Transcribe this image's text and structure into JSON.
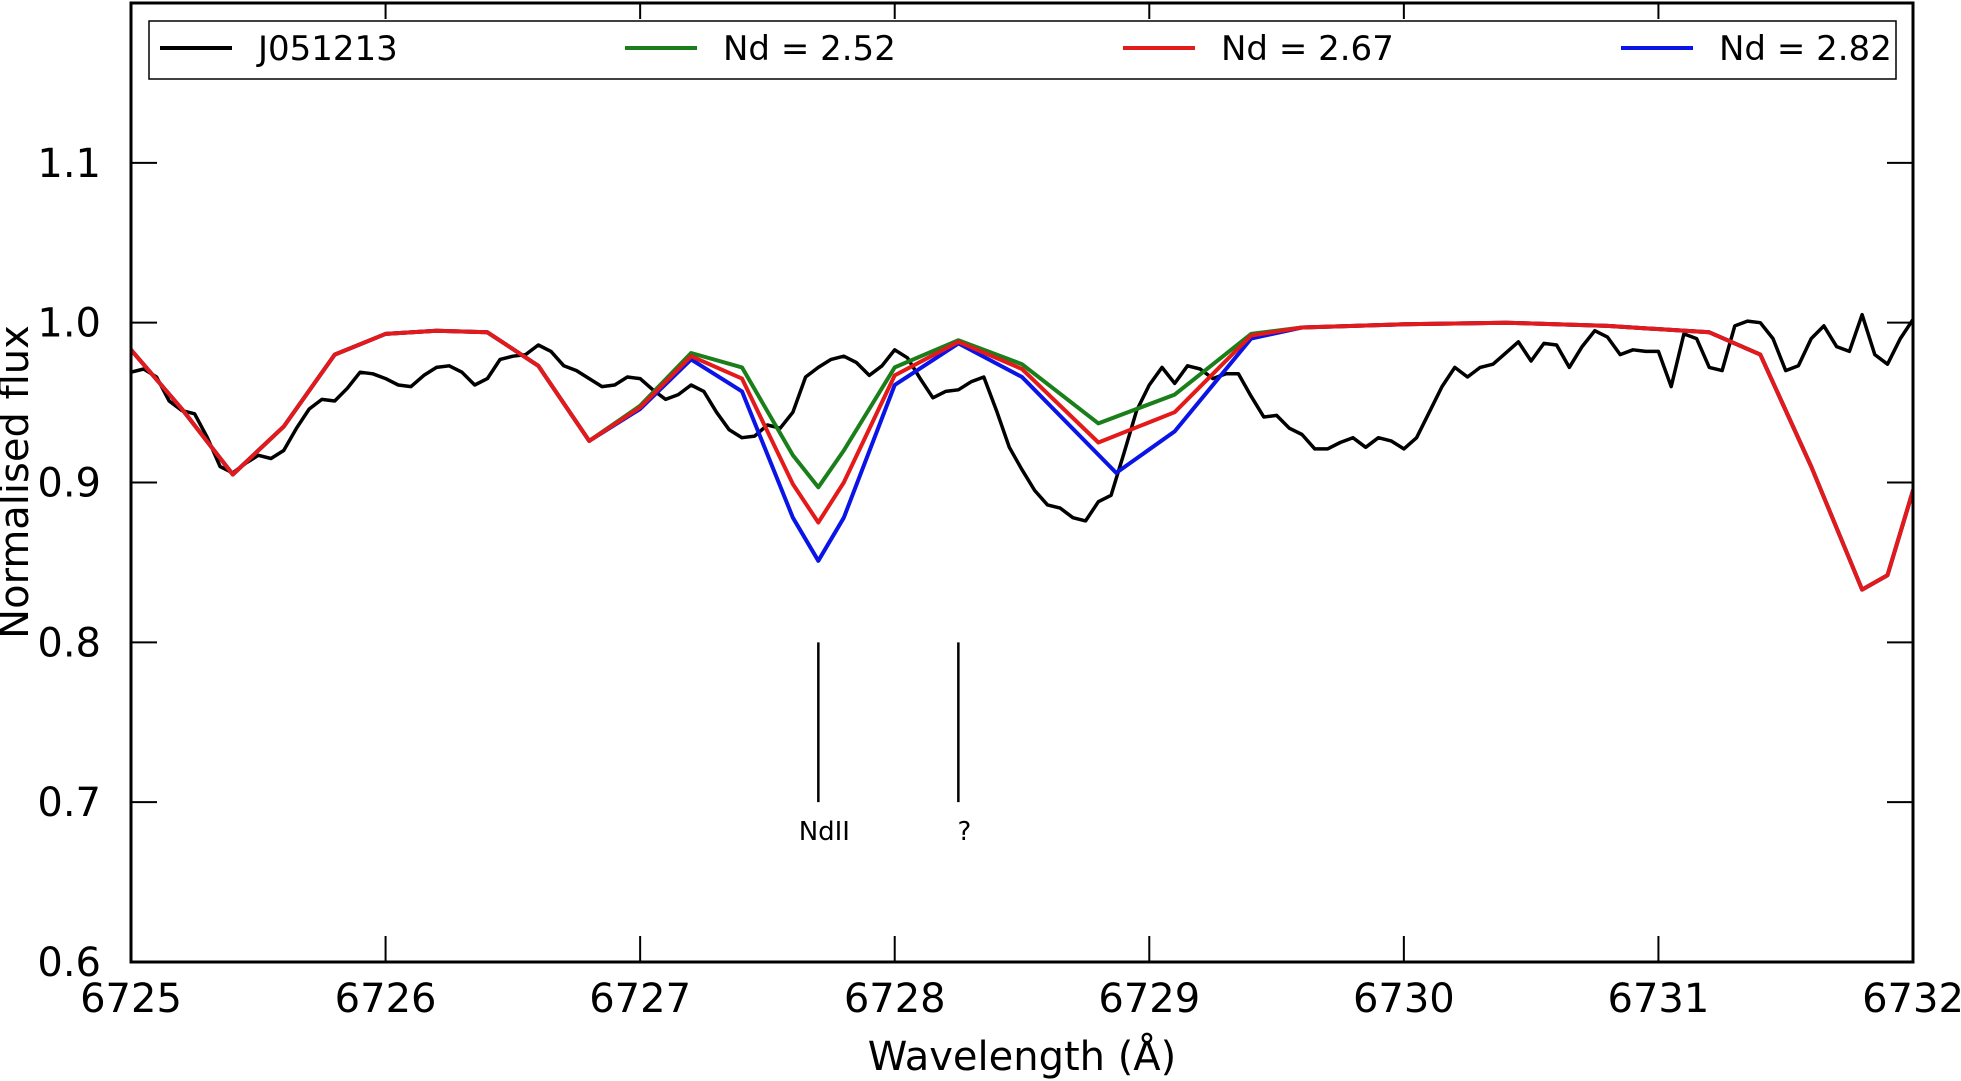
{
  "chart_data": {
    "type": "line",
    "title": "",
    "xlabel": "Wavelength (Å)",
    "ylabel": "Normalised flux",
    "xlim": [
      6725,
      6732
    ],
    "ylim": [
      0.6,
      1.2
    ],
    "xticks": [
      "6725",
      "6726",
      "6727",
      "6728",
      "6729",
      "6730",
      "6731",
      "6732"
    ],
    "yticks": [
      "0.6",
      "0.7",
      "0.8",
      "0.9",
      "1.0",
      "1.1"
    ],
    "grid": false,
    "legend": {
      "placement": "top",
      "columns": 4
    },
    "series": [
      {
        "name": "J051213",
        "color": "#000000",
        "points": [
          [
            6725.0,
            0.969
          ],
          [
            6725.05,
            0.971
          ],
          [
            6725.1,
            0.966
          ],
          [
            6725.15,
            0.951
          ],
          [
            6725.2,
            0.945
          ],
          [
            6725.25,
            0.943
          ],
          [
            6725.3,
            0.928
          ],
          [
            6725.35,
            0.91
          ],
          [
            6725.4,
            0.906
          ],
          [
            6725.45,
            0.912
          ],
          [
            6725.5,
            0.917
          ],
          [
            6725.55,
            0.915
          ],
          [
            6725.6,
            0.92
          ],
          [
            6725.65,
            0.934
          ],
          [
            6725.7,
            0.946
          ],
          [
            6725.75,
            0.952
          ],
          [
            6725.8,
            0.951
          ],
          [
            6725.85,
            0.959
          ],
          [
            6725.9,
            0.969
          ],
          [
            6725.95,
            0.968
          ],
          [
            6726.0,
            0.965
          ],
          [
            6726.05,
            0.961
          ],
          [
            6726.1,
            0.96
          ],
          [
            6726.15,
            0.967
          ],
          [
            6726.2,
            0.972
          ],
          [
            6726.25,
            0.973
          ],
          [
            6726.3,
            0.969
          ],
          [
            6726.35,
            0.961
          ],
          [
            6726.4,
            0.965
          ],
          [
            6726.45,
            0.977
          ],
          [
            6726.5,
            0.979
          ],
          [
            6726.55,
            0.98
          ],
          [
            6726.6,
            0.986
          ],
          [
            6726.65,
            0.982
          ],
          [
            6726.7,
            0.973
          ],
          [
            6726.75,
            0.97
          ],
          [
            6726.8,
            0.965
          ],
          [
            6726.85,
            0.96
          ],
          [
            6726.9,
            0.961
          ],
          [
            6726.95,
            0.966
          ],
          [
            6727.0,
            0.965
          ],
          [
            6727.05,
            0.958
          ],
          [
            6727.1,
            0.952
          ],
          [
            6727.15,
            0.955
          ],
          [
            6727.2,
            0.961
          ],
          [
            6727.25,
            0.957
          ],
          [
            6727.3,
            0.944
          ],
          [
            6727.35,
            0.933
          ],
          [
            6727.4,
            0.928
          ],
          [
            6727.45,
            0.929
          ],
          [
            6727.5,
            0.936
          ],
          [
            6727.55,
            0.934
          ],
          [
            6727.6,
            0.944
          ],
          [
            6727.65,
            0.966
          ],
          [
            6727.7,
            0.972
          ],
          [
            6727.75,
            0.977
          ],
          [
            6727.8,
            0.979
          ],
          [
            6727.85,
            0.975
          ],
          [
            6727.9,
            0.967
          ],
          [
            6727.95,
            0.973
          ],
          [
            6728.0,
            0.983
          ],
          [
            6728.05,
            0.978
          ],
          [
            6728.1,
            0.965
          ],
          [
            6728.15,
            0.953
          ],
          [
            6728.2,
            0.957
          ],
          [
            6728.25,
            0.958
          ],
          [
            6728.3,
            0.963
          ],
          [
            6728.35,
            0.966
          ],
          [
            6728.4,
            0.945
          ],
          [
            6728.45,
            0.922
          ],
          [
            6728.5,
            0.908
          ],
          [
            6728.55,
            0.895
          ],
          [
            6728.6,
            0.886
          ],
          [
            6728.65,
            0.884
          ],
          [
            6728.7,
            0.878
          ],
          [
            6728.75,
            0.876
          ],
          [
            6728.8,
            0.888
          ],
          [
            6728.85,
            0.892
          ],
          [
            6728.9,
            0.918
          ],
          [
            6728.95,
            0.945
          ],
          [
            6729.0,
            0.961
          ],
          [
            6729.05,
            0.972
          ],
          [
            6729.1,
            0.962
          ],
          [
            6729.15,
            0.973
          ],
          [
            6729.2,
            0.971
          ],
          [
            6729.25,
            0.965
          ],
          [
            6729.3,
            0.968
          ],
          [
            6729.35,
            0.968
          ],
          [
            6729.4,
            0.954
          ],
          [
            6729.45,
            0.941
          ],
          [
            6729.5,
            0.942
          ],
          [
            6729.55,
            0.934
          ],
          [
            6729.6,
            0.93
          ],
          [
            6729.65,
            0.921
          ],
          [
            6729.7,
            0.921
          ],
          [
            6729.75,
            0.925
          ],
          [
            6729.8,
            0.928
          ],
          [
            6729.85,
            0.922
          ],
          [
            6729.9,
            0.928
          ],
          [
            6729.95,
            0.926
          ],
          [
            6730.0,
            0.921
          ],
          [
            6730.05,
            0.928
          ],
          [
            6730.1,
            0.944
          ],
          [
            6730.15,
            0.96
          ],
          [
            6730.2,
            0.972
          ],
          [
            6730.25,
            0.966
          ],
          [
            6730.3,
            0.972
          ],
          [
            6730.35,
            0.974
          ],
          [
            6730.4,
            0.981
          ],
          [
            6730.45,
            0.988
          ],
          [
            6730.5,
            0.976
          ],
          [
            6730.55,
            0.987
          ],
          [
            6730.6,
            0.986
          ],
          [
            6730.65,
            0.972
          ],
          [
            6730.7,
            0.985
          ],
          [
            6730.75,
            0.995
          ],
          [
            6730.8,
            0.991
          ],
          [
            6730.85,
            0.98
          ],
          [
            6730.9,
            0.983
          ],
          [
            6730.95,
            0.982
          ],
          [
            6731.0,
            0.982
          ],
          [
            6731.05,
            0.96
          ],
          [
            6731.1,
            0.993
          ],
          [
            6731.15,
            0.99
          ],
          [
            6731.2,
            0.972
          ],
          [
            6731.25,
            0.97
          ],
          [
            6731.3,
            0.998
          ],
          [
            6731.35,
            1.001
          ],
          [
            6731.4,
            1.0
          ],
          [
            6731.45,
            0.99
          ],
          [
            6731.5,
            0.97
          ],
          [
            6731.55,
            0.973
          ],
          [
            6731.6,
            0.99
          ],
          [
            6731.65,
            0.998
          ],
          [
            6731.7,
            0.985
          ],
          [
            6731.75,
            0.982
          ],
          [
            6731.8,
            1.005
          ],
          [
            6731.85,
            0.98
          ],
          [
            6731.9,
            0.974
          ],
          [
            6731.95,
            0.99
          ],
          [
            6732.0,
            1.002
          ]
        ]
      },
      {
        "name": "Nd = 2.52",
        "color": "#1a7f1a",
        "points": [
          [
            6725.0,
            0.983
          ],
          [
            6725.2,
            0.946
          ],
          [
            6725.4,
            0.905
          ],
          [
            6725.6,
            0.935
          ],
          [
            6725.8,
            0.98
          ],
          [
            6726.0,
            0.993
          ],
          [
            6726.2,
            0.995
          ],
          [
            6726.4,
            0.994
          ],
          [
            6726.6,
            0.973
          ],
          [
            6726.8,
            0.926
          ],
          [
            6727.0,
            0.948
          ],
          [
            6727.2,
            0.981
          ],
          [
            6727.4,
            0.972
          ],
          [
            6727.6,
            0.917
          ],
          [
            6727.7,
            0.897
          ],
          [
            6727.8,
            0.92
          ],
          [
            6728.0,
            0.972
          ],
          [
            6728.25,
            0.989
          ],
          [
            6728.5,
            0.974
          ],
          [
            6728.8,
            0.937
          ],
          [
            6729.1,
            0.955
          ],
          [
            6729.4,
            0.993
          ],
          [
            6729.6,
            0.997
          ],
          [
            6730.0,
            0.999
          ],
          [
            6730.4,
            1.0
          ],
          [
            6730.8,
            0.998
          ],
          [
            6731.2,
            0.994
          ],
          [
            6731.4,
            0.98
          ],
          [
            6731.6,
            0.91
          ],
          [
            6731.8,
            0.833
          ],
          [
            6731.9,
            0.842
          ],
          [
            6732.0,
            0.895
          ]
        ]
      },
      {
        "name": "Nd = 2.67",
        "color": "#e41a1a",
        "points": [
          [
            6725.0,
            0.983
          ],
          [
            6725.2,
            0.946
          ],
          [
            6725.4,
            0.905
          ],
          [
            6725.6,
            0.935
          ],
          [
            6725.8,
            0.98
          ],
          [
            6726.0,
            0.993
          ],
          [
            6726.2,
            0.995
          ],
          [
            6726.4,
            0.994
          ],
          [
            6726.6,
            0.973
          ],
          [
            6726.8,
            0.926
          ],
          [
            6727.0,
            0.947
          ],
          [
            6727.2,
            0.979
          ],
          [
            6727.4,
            0.965
          ],
          [
            6727.6,
            0.899
          ],
          [
            6727.7,
            0.875
          ],
          [
            6727.8,
            0.9
          ],
          [
            6728.0,
            0.967
          ],
          [
            6728.25,
            0.988
          ],
          [
            6728.5,
            0.971
          ],
          [
            6728.8,
            0.925
          ],
          [
            6729.1,
            0.944
          ],
          [
            6729.4,
            0.992
          ],
          [
            6729.6,
            0.997
          ],
          [
            6730.0,
            0.999
          ],
          [
            6730.4,
            1.0
          ],
          [
            6730.8,
            0.998
          ],
          [
            6731.2,
            0.994
          ],
          [
            6731.4,
            0.98
          ],
          [
            6731.6,
            0.91
          ],
          [
            6731.8,
            0.833
          ],
          [
            6731.9,
            0.842
          ],
          [
            6732.0,
            0.895
          ]
        ]
      },
      {
        "name": "Nd = 2.82",
        "color": "#0a14e6",
        "points": [
          [
            6725.0,
            0.983
          ],
          [
            6725.2,
            0.946
          ],
          [
            6725.4,
            0.905
          ],
          [
            6725.6,
            0.935
          ],
          [
            6725.8,
            0.98
          ],
          [
            6726.0,
            0.993
          ],
          [
            6726.2,
            0.995
          ],
          [
            6726.4,
            0.994
          ],
          [
            6726.6,
            0.973
          ],
          [
            6726.8,
            0.926
          ],
          [
            6727.0,
            0.946
          ],
          [
            6727.2,
            0.977
          ],
          [
            6727.4,
            0.957
          ],
          [
            6727.6,
            0.878
          ],
          [
            6727.7,
            0.851
          ],
          [
            6727.8,
            0.878
          ],
          [
            6728.0,
            0.961
          ],
          [
            6728.25,
            0.987
          ],
          [
            6728.5,
            0.966
          ],
          [
            6728.87,
            0.906
          ],
          [
            6729.1,
            0.932
          ],
          [
            6729.4,
            0.99
          ],
          [
            6729.6,
            0.997
          ],
          [
            6730.0,
            0.999
          ],
          [
            6730.4,
            1.0
          ],
          [
            6730.8,
            0.998
          ],
          [
            6731.2,
            0.994
          ],
          [
            6731.4,
            0.98
          ],
          [
            6731.6,
            0.91
          ],
          [
            6731.8,
            0.833
          ],
          [
            6731.9,
            0.842
          ],
          [
            6732.0,
            0.895
          ]
        ]
      }
    ],
    "annotations": [
      {
        "text": "NdII",
        "x": 6727.7,
        "y_top": 0.8,
        "y_bottom": 0.7
      },
      {
        "text": "?",
        "x": 6728.25,
        "y_top": 0.8,
        "y_bottom": 0.7
      }
    ]
  }
}
